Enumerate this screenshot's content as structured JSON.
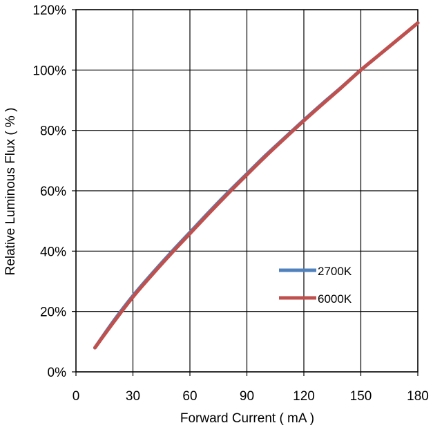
{
  "chart_data": {
    "type": "line",
    "title": "",
    "xlabel": "Forward Current ( mA )",
    "ylabel": "Relative Luminous Flux ( % )",
    "xlim": [
      0,
      180
    ],
    "ylim": [
      0,
      120
    ],
    "x_ticks": [
      0,
      30,
      60,
      90,
      120,
      150,
      180
    ],
    "x_tick_labels": [
      "0",
      "30",
      "60",
      "90",
      "120",
      "150",
      "180"
    ],
    "y_ticks": [
      0,
      20,
      40,
      60,
      80,
      100,
      120
    ],
    "y_tick_labels": [
      "0%",
      "20%",
      "40%",
      "60%",
      "80%",
      "100%",
      "120%"
    ],
    "grid": true,
    "legend_position": "lower-right",
    "series": [
      {
        "name": "2700K",
        "color": "#4f81bd",
        "x": [
          10,
          20,
          30,
          40,
          50,
          60,
          70,
          80,
          90,
          100,
          110,
          120,
          130,
          140,
          150,
          160,
          170,
          180
        ],
        "y": [
          8,
          17,
          25.2,
          32.5,
          39.5,
          46.2,
          52.9,
          59.4,
          65.6,
          71.8,
          77.6,
          83.4,
          89,
          94.4,
          100,
          105.2,
          110.4,
          115.6
        ]
      },
      {
        "name": "6000K",
        "color": "#c0504d",
        "x": [
          10,
          20,
          30,
          40,
          50,
          60,
          70,
          80,
          90,
          100,
          110,
          120,
          130,
          140,
          150,
          160,
          170,
          180
        ],
        "y": [
          8,
          16.6,
          24.8,
          32.1,
          39.1,
          45.8,
          52.5,
          59,
          65.3,
          71.5,
          77.4,
          83.2,
          88.8,
          94.3,
          100,
          105.2,
          110.4,
          115.6
        ]
      }
    ]
  }
}
